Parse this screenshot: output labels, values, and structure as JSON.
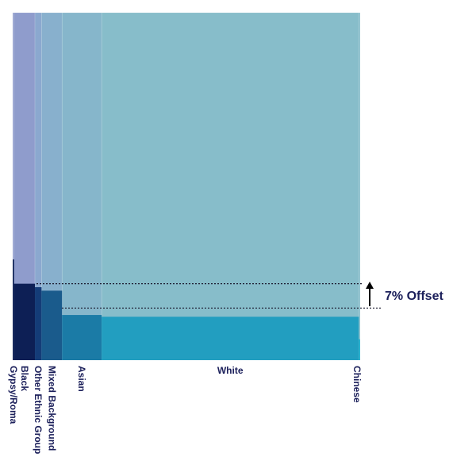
{
  "chart_data": {
    "type": "bar",
    "description_kind": "variable-width (marimekko) bars",
    "categories": [
      "Gypsy/Roma",
      "Black",
      "Other Ethnic Group",
      "Mixed Background",
      "Asian",
      "White",
      "Chinese"
    ],
    "widths": [
      0.4,
      6.0,
      1.9,
      5.9,
      11.4,
      74.0,
      0.4
    ],
    "values": [
      29,
      22,
      21,
      20,
      13,
      12.5,
      6
    ],
    "background_values": [
      100,
      100,
      100,
      100,
      100,
      100,
      100
    ],
    "ylim": [
      0,
      100
    ],
    "bar_colors": [
      "#0d1f55",
      "#0d1f55",
      "#143c78",
      "#1a5b8c",
      "#1b7ba6",
      "#229ec0",
      "#27b2cf"
    ],
    "background_colors": [
      "#8f9ccc",
      "#8f9ccc",
      "#8ba8cf",
      "#88b0cd",
      "#86b6cb",
      "#87bdca",
      "#87bdca"
    ],
    "reference_lines": [
      22,
      15
    ],
    "annotation": "7% Offset",
    "grid": false,
    "legend": "none"
  }
}
